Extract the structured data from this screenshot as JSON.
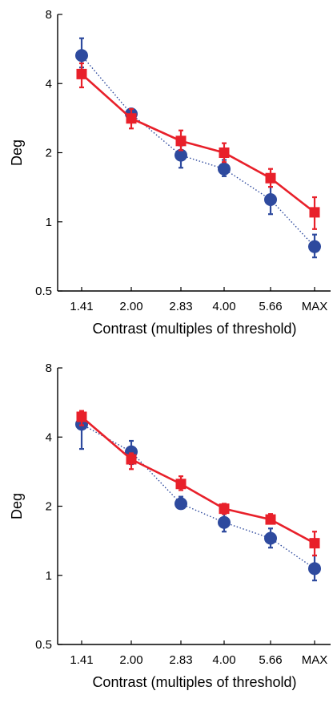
{
  "colors": {
    "square_series": "#e8202a",
    "circle_series": "#2e4a9e"
  },
  "chart_data": [
    {
      "type": "line",
      "xlabel": "Contrast (multiples of threshold)",
      "ylabel": "Deg",
      "yscale": "log2",
      "ylim": [
        0.5,
        8
      ],
      "yticks": [
        "0.5",
        "1",
        "2",
        "4",
        "8"
      ],
      "yticks_values": [
        0.5,
        1,
        2,
        4,
        8
      ],
      "categories": [
        "1.41",
        "2.00",
        "2.83",
        "4.00",
        "5.66",
        "MAX"
      ],
      "grid": false,
      "series": [
        {
          "marker": "square",
          "line": "solid",
          "values": [
            4.4,
            2.82,
            2.25,
            2.0,
            1.55,
            1.1
          ],
          "err_low": [
            3.85,
            2.55,
            2.05,
            1.82,
            1.42,
            0.93
          ],
          "err_high": [
            4.9,
            3.1,
            2.5,
            2.2,
            1.7,
            1.28
          ]
        },
        {
          "marker": "circle",
          "line": "dotted",
          "values": [
            5.3,
            2.95,
            1.95,
            1.7,
            1.25,
            0.78
          ],
          "err_low": [
            4.7,
            2.8,
            1.72,
            1.58,
            1.08,
            0.7
          ],
          "err_high": [
            6.3,
            3.1,
            2.15,
            1.86,
            1.42,
            0.88
          ]
        }
      ]
    },
    {
      "type": "line",
      "xlabel": "Contrast (multiples of threshold)",
      "ylabel": "Deg",
      "yscale": "log2",
      "ylim": [
        0.5,
        8
      ],
      "yticks": [
        "0.5",
        "1",
        "2",
        "4",
        "8"
      ],
      "yticks_values": [
        0.5,
        1,
        2,
        4,
        8
      ],
      "categories": [
        "1.41",
        "2.00",
        "2.83",
        "4.00",
        "5.66",
        "MAX"
      ],
      "grid": false,
      "series": [
        {
          "marker": "square",
          "line": "solid",
          "values": [
            4.9,
            3.2,
            2.5,
            1.95,
            1.75,
            1.38
          ],
          "err_low": [
            4.5,
            2.9,
            2.35,
            1.85,
            1.68,
            1.22
          ],
          "err_high": [
            5.2,
            3.4,
            2.7,
            2.05,
            1.85,
            1.55
          ]
        },
        {
          "marker": "circle",
          "line": "dotted",
          "values": [
            4.55,
            3.45,
            2.05,
            1.7,
            1.45,
            1.07
          ],
          "err_low": [
            3.55,
            3.05,
            1.95,
            1.55,
            1.32,
            0.95
          ],
          "err_high": [
            5.2,
            3.85,
            2.2,
            1.85,
            1.6,
            1.22
          ]
        }
      ]
    }
  ]
}
